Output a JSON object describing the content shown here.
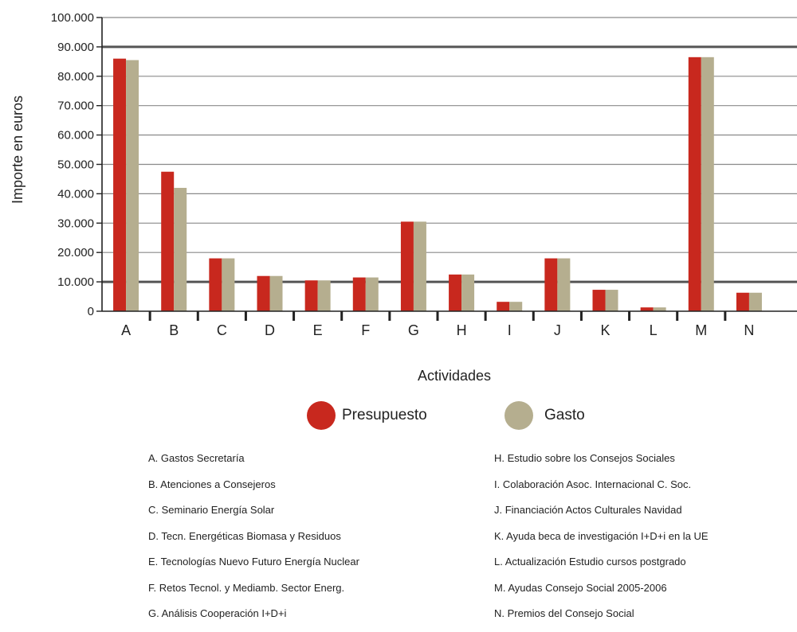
{
  "chart_data": {
    "type": "bar",
    "ylabel": "Importe en euros",
    "xlabel": "Actividades",
    "ylim": [
      0,
      100000
    ],
    "ytick_values": [
      0,
      10000,
      20000,
      30000,
      40000,
      50000,
      60000,
      70000,
      80000,
      90000,
      100000
    ],
    "ytick_labels": [
      "0",
      "10.000",
      "20.000",
      "30.000",
      "40.000",
      "50.000",
      "60.000",
      "70.000",
      "80.000",
      "90.000",
      "100.000"
    ],
    "bold_gridlines": [
      10000,
      90000
    ],
    "grid": true,
    "legend_position": "bottom-center",
    "categories": [
      "A",
      "B",
      "C",
      "D",
      "E",
      "F",
      "G",
      "H",
      "I",
      "J",
      "K",
      "L",
      "M",
      "N"
    ],
    "series": [
      {
        "name": "Presupuesto",
        "color": "#c8281e",
        "values": [
          86000,
          47500,
          18000,
          12000,
          10500,
          11500,
          30500,
          12500,
          3200,
          18000,
          7300,
          1300,
          86500,
          6300
        ]
      },
      {
        "name": "Gasto",
        "color": "#b5ae8f",
        "values": [
          85500,
          42000,
          18000,
          12000,
          10500,
          11500,
          30500,
          12500,
          3200,
          18000,
          7300,
          1300,
          86500,
          6300
        ]
      }
    ]
  },
  "descriptions_left": [
    "A. Gastos Secretaría",
    "B. Atenciones a Consejeros",
    "C. Seminario Energía Solar",
    "D. Tecn. Energéticas Biomasa y Residuos",
    "E. Tecnologías Nuevo Futuro Energía Nuclear",
    "F. Retos Tecnol. y Mediamb. Sector Energ.",
    "G. Análisis Cooperación I+D+i"
  ],
  "descriptions_right": [
    "H. Estudio sobre los Consejos Sociales",
    "I. Colaboración Asoc. Internacional C. Soc.",
    "J. Financiación Actos Culturales Navidad",
    "K. Ayuda beca de investigación I+D+i en la UE",
    "L. Actualización Estudio cursos postgrado",
    "M. Ayudas Consejo Social 2005-2006",
    "N. Premios del Consejo Social"
  ]
}
